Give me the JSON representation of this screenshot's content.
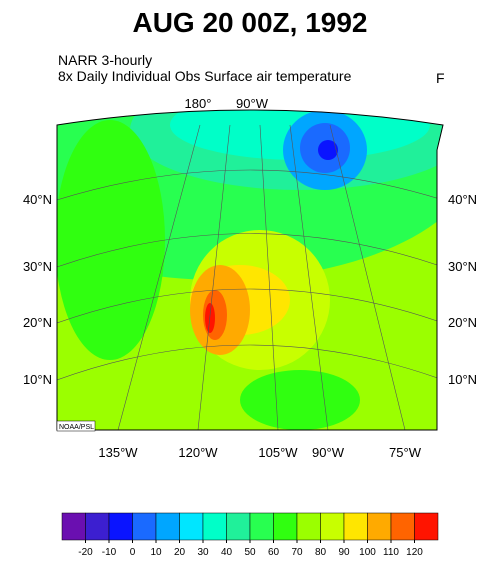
{
  "header": {
    "title": "AUG 20 00Z, 1992",
    "subtitle_lines": [
      "NARR 3-hourly",
      "8x Daily Individual Obs  Surface air temperature"
    ],
    "units": "F"
  },
  "map": {
    "top_lon_labels": [
      "180°",
      "90°W"
    ],
    "lat_labels": [
      "40°N",
      "30°N",
      "20°N",
      "10°N"
    ],
    "bottom_lon_labels": [
      "135°W",
      "120°W",
      "105°W",
      "90°W",
      "75°W"
    ],
    "credit": "NOAA/PSL"
  },
  "colorbar": {
    "ticks": [
      -20,
      -10,
      0,
      10,
      20,
      30,
      40,
      50,
      60,
      70,
      80,
      90,
      100,
      110,
      120
    ],
    "colors": [
      "#6a0fb0",
      "#3c1fd0",
      "#0a14ff",
      "#1a6aff",
      "#00a6ff",
      "#00e6ff",
      "#00ffc8",
      "#20f09a",
      "#28ff50",
      "#30ff10",
      "#9bff00",
      "#c8ff00",
      "#ffe600",
      "#ffaa00",
      "#ff6400",
      "#ff1400"
    ]
  }
}
